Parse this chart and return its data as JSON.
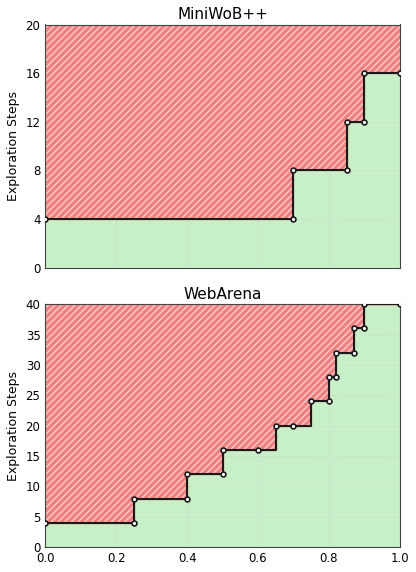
{
  "miniwob_title": "MiniWoB++",
  "webarena_title": "WebArena",
  "ylabel": "Exploration Steps",
  "miniwob_points": [
    [
      0.0,
      4
    ],
    [
      0.7,
      4
    ],
    [
      0.7,
      8
    ],
    [
      0.85,
      8
    ],
    [
      0.85,
      12
    ],
    [
      0.9,
      12
    ],
    [
      0.9,
      16
    ],
    [
      1.0,
      16
    ]
  ],
  "miniwob_ylim": [
    0,
    20
  ],
  "miniwob_yticks": [
    0,
    4,
    8,
    12,
    16,
    20
  ],
  "webarena_points": [
    [
      0.0,
      4
    ],
    [
      0.25,
      4
    ],
    [
      0.25,
      8
    ],
    [
      0.4,
      8
    ],
    [
      0.4,
      12
    ],
    [
      0.5,
      12
    ],
    [
      0.5,
      16
    ],
    [
      0.6,
      16
    ],
    [
      0.65,
      20
    ],
    [
      0.7,
      20
    ],
    [
      0.75,
      24
    ],
    [
      0.8,
      24
    ],
    [
      0.8,
      28
    ],
    [
      0.82,
      28
    ],
    [
      0.82,
      32
    ],
    [
      0.87,
      32
    ],
    [
      0.87,
      36
    ],
    [
      0.9,
      36
    ],
    [
      0.9,
      40
    ],
    [
      1.0,
      40
    ]
  ],
  "webarena_ylim": [
    0,
    40
  ],
  "webarena_yticks": [
    0,
    5,
    10,
    15,
    20,
    25,
    30,
    35,
    40
  ],
  "xlim": [
    0.0,
    1.0
  ],
  "xticks": [
    0.0,
    0.2,
    0.4,
    0.6,
    0.8,
    1.0
  ],
  "green_fill": "#c8f0c8",
  "red_fill": "#f08080",
  "line_color": "#1a1a1a",
  "grid_color": "#d0d0d0",
  "title_fontsize": 11,
  "label_fontsize": 9,
  "tick_fontsize": 8.5
}
